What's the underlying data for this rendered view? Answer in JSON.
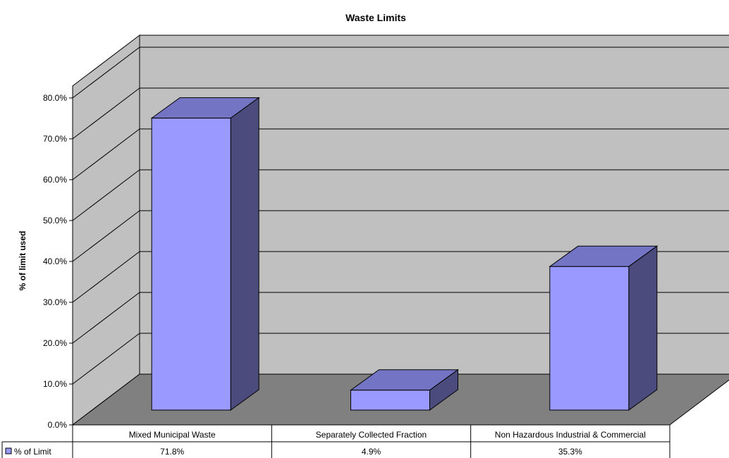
{
  "chart_data": {
    "type": "bar",
    "title": "Waste Limits",
    "ylabel": "% of limit used",
    "xlabel": "",
    "categories": [
      "Mixed Municipal Waste",
      "Separately Collected Fraction",
      "Non Hazardous Industrial & Commercial"
    ],
    "series": [
      {
        "name": "% of Limit",
        "values": [
          71.8,
          4.9,
          35.3
        ],
        "labels": [
          "71.8%",
          "4.9%",
          "35.3%"
        ]
      }
    ],
    "ylim": [
      0,
      80
    ],
    "yticks": [
      "0.0%",
      "10.0%",
      "20.0%",
      "30.0%",
      "40.0%",
      "50.0%",
      "60.0%",
      "70.0%",
      "80.0%"
    ],
    "grid": true,
    "style": "3d-column",
    "legend": "data-table-left",
    "colors": {
      "bar_front": "#9999FF",
      "bar_top": "#7474C4",
      "bar_side": "#4B4B7D",
      "back_wall": "#C0C0C0",
      "floor": "#808080"
    }
  }
}
